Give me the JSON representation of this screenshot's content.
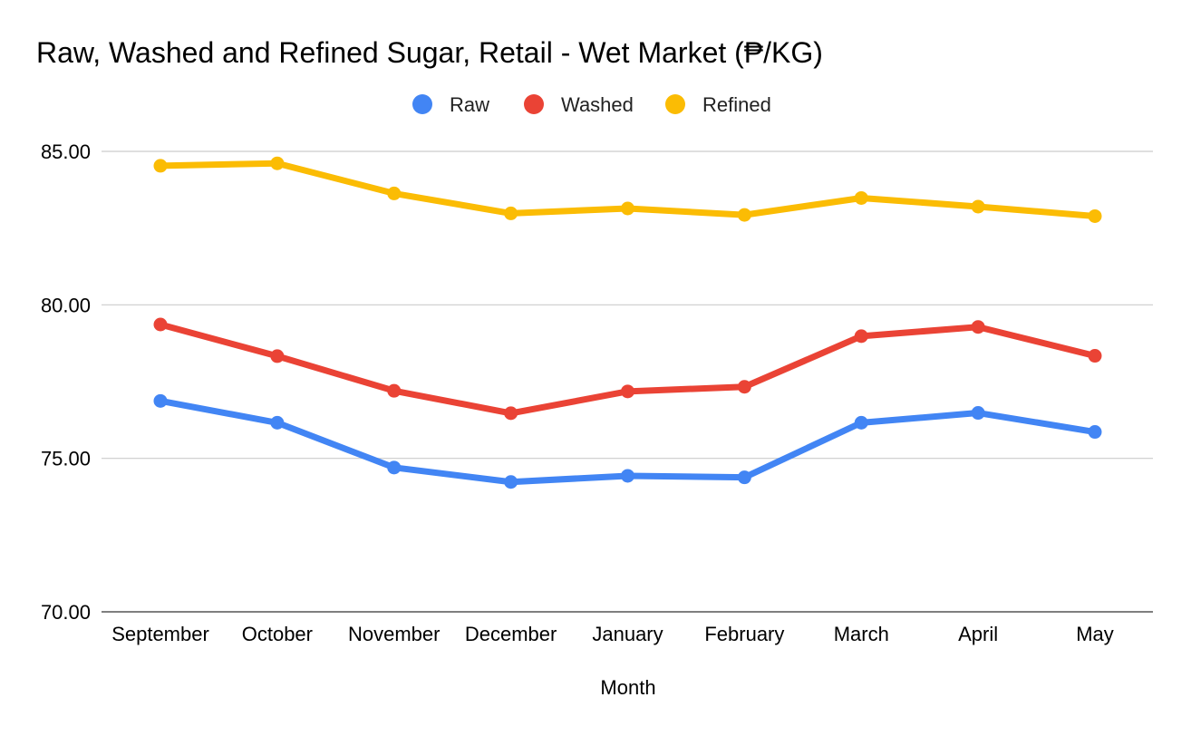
{
  "chart_data": {
    "type": "line",
    "title": "Raw, Washed and Refined Sugar, Retail - Wet Market (₱/KG)",
    "xlabel": "Month",
    "ylabel": "",
    "categories": [
      "September",
      "October",
      "November",
      "December",
      "January",
      "February",
      "March",
      "April",
      "May"
    ],
    "ylim": [
      70,
      85
    ],
    "yticks": [
      "70.00",
      "75.00",
      "80.00",
      "85.00"
    ],
    "grid": true,
    "legend_position": "top-center",
    "series": [
      {
        "name": "Raw",
        "color": "#4285F4",
        "values": [
          76.87,
          76.16,
          74.7,
          74.23,
          74.43,
          74.38,
          76.16,
          76.48,
          75.86
        ]
      },
      {
        "name": "Washed",
        "color": "#EA4335",
        "values": [
          79.36,
          78.33,
          77.2,
          76.47,
          77.18,
          77.33,
          78.98,
          79.28,
          78.34
        ]
      },
      {
        "name": "Refined",
        "color": "#FBBC04",
        "values": [
          84.53,
          84.61,
          83.63,
          82.98,
          83.14,
          82.93,
          83.48,
          83.2,
          82.89
        ]
      }
    ]
  }
}
